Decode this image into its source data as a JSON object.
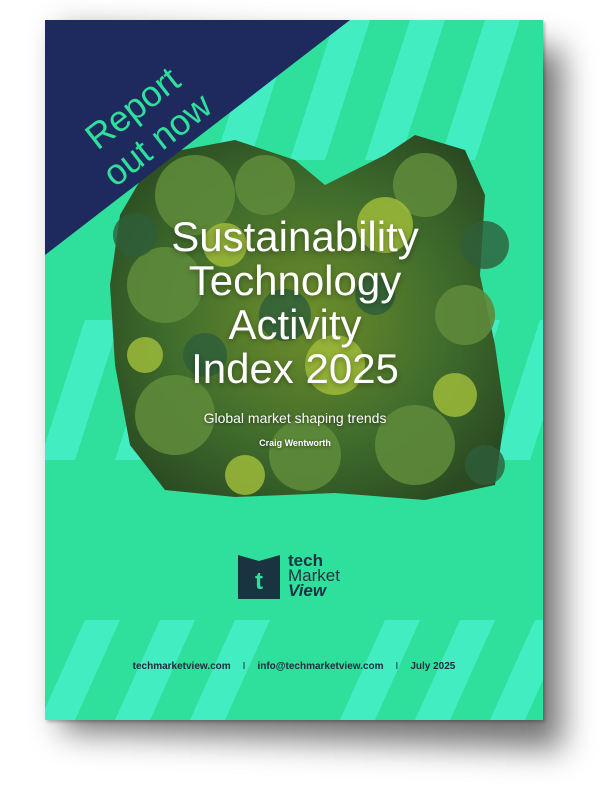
{
  "banner": {
    "line1": "Report",
    "line2": "out now"
  },
  "title": {
    "line1": "Sustainability",
    "line2": "Technology",
    "line3": "Activity",
    "line4": "Index 2025"
  },
  "subtitle": "Global market shaping trends",
  "author": "Craig Wentworth",
  "logo": {
    "line1": "tech",
    "line2": "Market",
    "line3": "View",
    "mark_glyph": "t",
    "icon": "book-t-logo-icon"
  },
  "footer": {
    "website": "techmarketview.com",
    "email": "info@techmarketview.com",
    "date": "July 2025",
    "separator": "I"
  },
  "colors": {
    "background": "#2fe09d",
    "pattern": "#3ff0c8",
    "banner": "#1e2a5e",
    "logo": "#1a3340",
    "text": "#ffffff"
  }
}
